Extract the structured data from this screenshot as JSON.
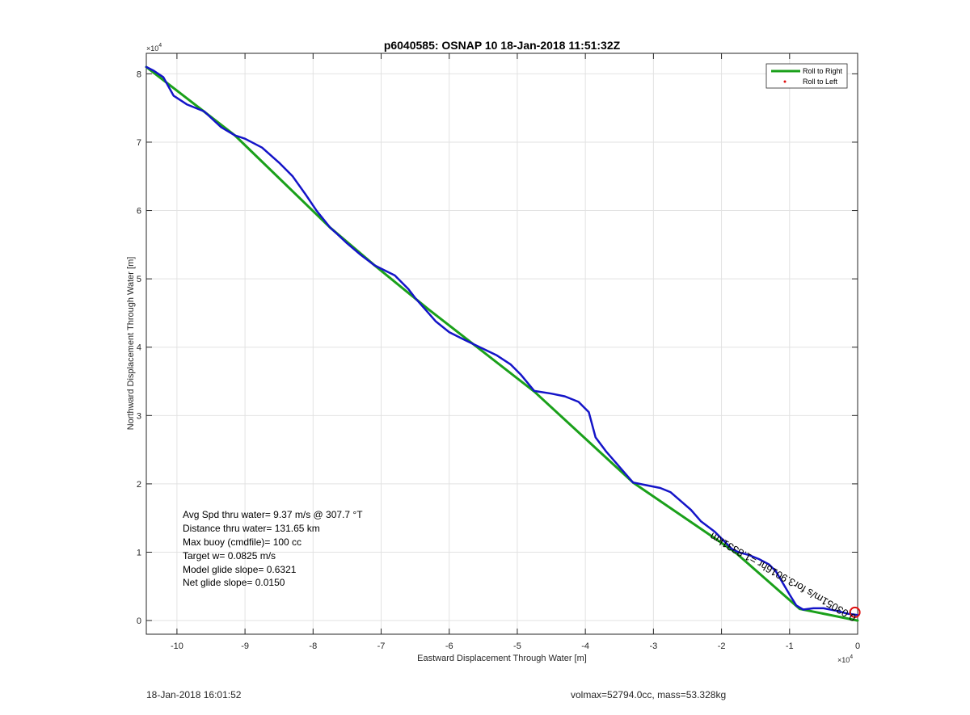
{
  "chart_data": {
    "type": "line",
    "title": "p6040585: OSNAP 10 18-Jan-2018 11:51:32Z",
    "xlabel": "Eastward Displacement Through Water [m]",
    "ylabel": "Northward Displacement Through Water [m]",
    "x_multiplier": "×10",
    "x_exponent": "4",
    "y_multiplier": "×10",
    "y_exponent": "4",
    "xlim": [
      -10.45,
      0
    ],
    "ylim": [
      -0.2,
      8.3
    ],
    "x_ticks": [
      -10,
      -9,
      -8,
      -7,
      -6,
      -5,
      -4,
      -3,
      -2,
      -1,
      0
    ],
    "y_ticks": [
      0,
      1,
      2,
      3,
      4,
      5,
      6,
      7,
      8
    ],
    "grid": true,
    "legend_position": "top-right",
    "colors": {
      "green": "#1aa01a",
      "blue": "#1414c8",
      "red": "#e01010",
      "grid": "#e2e2e2"
    },
    "series": [
      {
        "name": "Roll to Right",
        "color": "#1aa01a",
        "points": [
          [
            0.0,
            0.0
          ],
          [
            -0.85,
            0.17
          ],
          [
            -1.8,
            1.0
          ],
          [
            -3.3,
            2.02
          ],
          [
            -4.75,
            3.35
          ],
          [
            -6.3,
            4.55
          ],
          [
            -7.1,
            5.2
          ],
          [
            -7.75,
            5.75
          ],
          [
            -9.15,
            7.1
          ],
          [
            -10.45,
            8.1
          ]
        ]
      },
      {
        "name": "",
        "color": "#1414c8",
        "points": [
          [
            0.0,
            0.08
          ],
          [
            -0.15,
            0.1
          ],
          [
            -0.3,
            0.14
          ],
          [
            -0.5,
            0.18
          ],
          [
            -0.65,
            0.18
          ],
          [
            -0.8,
            0.16
          ],
          [
            -0.9,
            0.22
          ],
          [
            -1.0,
            0.38
          ],
          [
            -1.1,
            0.55
          ],
          [
            -1.2,
            0.72
          ],
          [
            -1.3,
            0.82
          ],
          [
            -1.45,
            0.9
          ],
          [
            -1.6,
            0.96
          ],
          [
            -1.75,
            1.0
          ],
          [
            -1.85,
            1.05
          ],
          [
            -1.95,
            1.15
          ],
          [
            -2.1,
            1.3
          ],
          [
            -2.3,
            1.45
          ],
          [
            -2.45,
            1.62
          ],
          [
            -2.6,
            1.75
          ],
          [
            -2.75,
            1.88
          ],
          [
            -2.9,
            1.94
          ],
          [
            -3.1,
            1.98
          ],
          [
            -3.3,
            2.02
          ],
          [
            -3.5,
            2.25
          ],
          [
            -3.7,
            2.48
          ],
          [
            -3.85,
            2.68
          ],
          [
            -3.95,
            3.05
          ],
          [
            -4.1,
            3.2
          ],
          [
            -4.3,
            3.28
          ],
          [
            -4.5,
            3.32
          ],
          [
            -4.75,
            3.36
          ],
          [
            -4.95,
            3.6
          ],
          [
            -5.1,
            3.75
          ],
          [
            -5.3,
            3.88
          ],
          [
            -5.55,
            4.0
          ],
          [
            -5.8,
            4.12
          ],
          [
            -6.0,
            4.22
          ],
          [
            -6.2,
            4.38
          ],
          [
            -6.35,
            4.55
          ],
          [
            -6.5,
            4.72
          ],
          [
            -6.6,
            4.85
          ],
          [
            -6.8,
            5.05
          ],
          [
            -7.0,
            5.15
          ],
          [
            -7.1,
            5.2
          ],
          [
            -7.3,
            5.35
          ],
          [
            -7.5,
            5.52
          ],
          [
            -7.65,
            5.66
          ],
          [
            -7.75,
            5.75
          ],
          [
            -7.95,
            6.0
          ],
          [
            -8.1,
            6.22
          ],
          [
            -8.3,
            6.5
          ],
          [
            -8.5,
            6.7
          ],
          [
            -8.75,
            6.92
          ],
          [
            -9.0,
            7.05
          ],
          [
            -9.15,
            7.1
          ],
          [
            -9.35,
            7.22
          ],
          [
            -9.6,
            7.45
          ],
          [
            -9.85,
            7.55
          ],
          [
            -10.05,
            7.68
          ],
          [
            -10.2,
            7.95
          ],
          [
            -10.35,
            8.05
          ],
          [
            -10.45,
            8.1
          ]
        ]
      },
      {
        "name": "Roll to Left",
        "color": "#e01010",
        "points": []
      }
    ],
    "end_marker": {
      "x": -0.04,
      "y": 0.12,
      "color": "#e01010"
    },
    "current_annotation": "0.03051m/s for3.9016hr =1.8331km",
    "stats": {
      "avg_speed": "Avg Spd thru water=  9.37 m/s @ 307.7 °T",
      "distance": "Distance thru water= 131.65 km",
      "max_buoy": "Max buoy (cmdfile)= 100 cc",
      "target_w": "Target w= 0.0825 m/s",
      "model_glide": "Model glide slope= 0.6321",
      "net_glide": "Net glide slope= 0.0150"
    }
  },
  "footer": {
    "timestamp": "18-Jan-2018 16:01:52",
    "volume_mass": "volmax=52794.0cc, mass=53.328kg"
  }
}
